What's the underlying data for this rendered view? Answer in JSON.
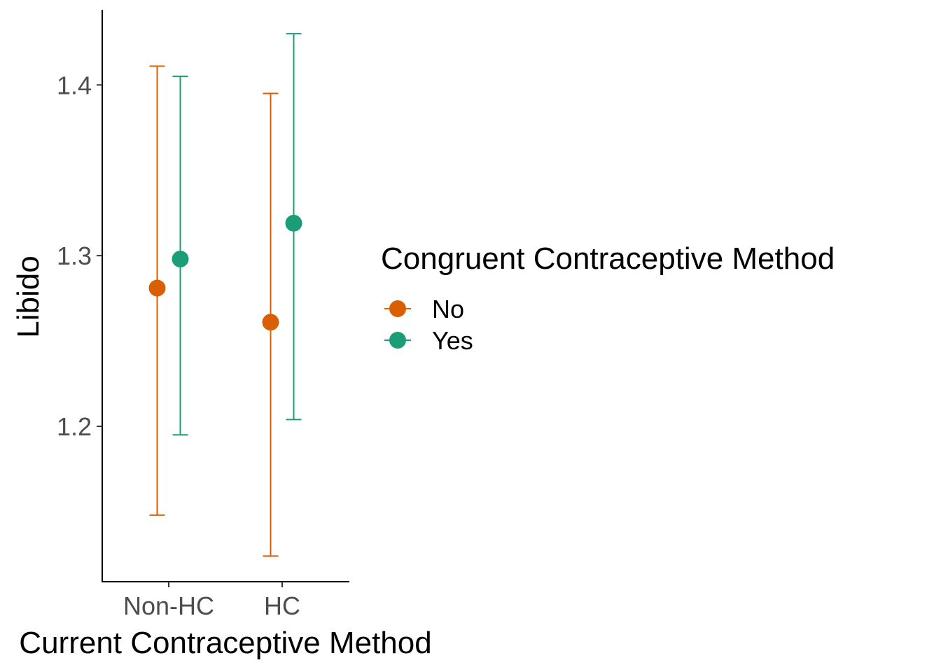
{
  "chart_data": {
    "type": "scatter",
    "subtype": "point-with-errorbars",
    "xlabel": "Current Contraceptive Method",
    "ylabel": "Libido",
    "categories": [
      "Non-HC",
      "HC"
    ],
    "ylim": [
      1.109,
      1.444
    ],
    "yticks": [
      1.2,
      1.3,
      1.4
    ],
    "ytick_labels": [
      "1.2",
      "1.3",
      "1.4"
    ],
    "grid": false,
    "legend": {
      "title": "Congruent Contraceptive Method",
      "position": "right"
    },
    "series": [
      {
        "name": "No",
        "color": "#d95f02",
        "values": [
          1.281,
          1.261
        ],
        "lower": [
          1.148,
          1.124
        ],
        "upper": [
          1.411,
          1.395
        ]
      },
      {
        "name": "Yes",
        "color": "#1b9e77",
        "values": [
          1.298,
          1.319
        ],
        "lower": [
          1.195,
          1.204
        ],
        "upper": [
          1.405,
          1.43
        ]
      }
    ]
  }
}
